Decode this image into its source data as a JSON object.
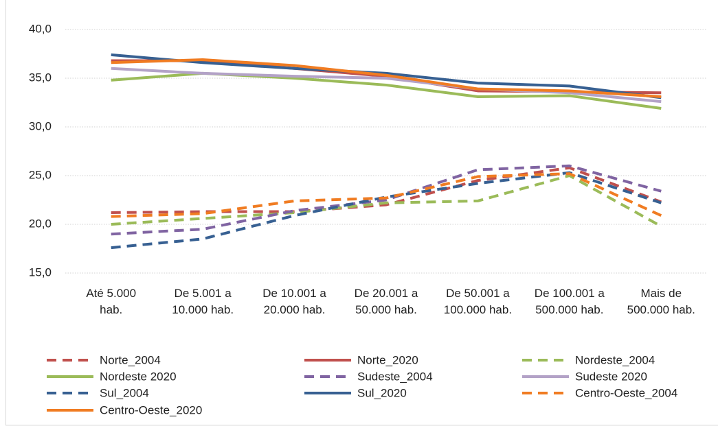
{
  "chart_data": {
    "type": "line",
    "categories": [
      "Até 5.000\nhab.",
      "De 5.001 a\n10.000 hab.",
      "De 10.001 a\n20.000 hab.",
      "De 20.001 a\n50.000 hab.",
      "De 50.001 a\n100.000 hab.",
      "De 100.001 a\n500.000 hab.",
      "Mais de\n500.000 hab."
    ],
    "ylim": [
      15,
      40
    ],
    "yticks": [
      {
        "value": 15,
        "label": "15,0"
      },
      {
        "value": 20,
        "label": "20,0"
      },
      {
        "value": 25,
        "label": "25,0"
      },
      {
        "value": 30,
        "label": "30,0"
      },
      {
        "value": 35,
        "label": "35,0"
      },
      {
        "value": 40,
        "label": "40,0"
      }
    ],
    "grid": true,
    "legend": "bottom",
    "series": [
      {
        "name": "Norte_2004",
        "color": "#c0504d",
        "line_style": "dashed",
        "values": [
          21.2,
          21.3,
          21.3,
          22.0,
          24.5,
          25.8,
          22.3
        ]
      },
      {
        "name": "Norte_2020",
        "color": "#c0504d",
        "line_style": "solid",
        "values": [
          36.8,
          36.8,
          36.0,
          35.2,
          33.7,
          33.6,
          33.5
        ]
      },
      {
        "name": "Nordeste_2004",
        "color": "#9bbb59",
        "line_style": "dashed",
        "values": [
          20.0,
          20.6,
          21.2,
          22.2,
          22.4,
          25.0,
          19.8
        ]
      },
      {
        "name": "Nordeste 2020",
        "color": "#9bbb59",
        "line_style": "solid",
        "values": [
          34.8,
          35.5,
          35.0,
          34.3,
          33.1,
          33.2,
          31.9
        ]
      },
      {
        "name": "Sudeste_2004",
        "color": "#8064a2",
        "line_style": "dashed",
        "values": [
          19.0,
          19.5,
          21.4,
          22.5,
          25.6,
          26.0,
          23.4
        ]
      },
      {
        "name": "Sudeste 2020",
        "color": "#b3a2c7",
        "line_style": "solid",
        "values": [
          36.0,
          35.5,
          35.2,
          35.0,
          33.9,
          33.5,
          32.6
        ]
      },
      {
        "name": "Sul_2004",
        "color": "#376092",
        "line_style": "dashed",
        "values": [
          17.6,
          18.5,
          20.9,
          22.8,
          24.2,
          25.3,
          22.2
        ]
      },
      {
        "name": "Sul_2020",
        "color": "#376092",
        "line_style": "solid",
        "values": [
          37.4,
          36.6,
          36.0,
          35.5,
          34.5,
          34.2,
          33.0
        ]
      },
      {
        "name": "Centro-Oeste_2004",
        "color": "#f07c22",
        "line_style": "dashed",
        "values": [
          20.8,
          21.1,
          22.4,
          22.7,
          24.9,
          25.2,
          20.9
        ]
      },
      {
        "name": "Centro-Oeste_2020",
        "color": "#f07c22",
        "line_style": "solid",
        "values": [
          36.6,
          36.9,
          36.3,
          35.3,
          33.9,
          33.7,
          33.1
        ]
      }
    ]
  }
}
